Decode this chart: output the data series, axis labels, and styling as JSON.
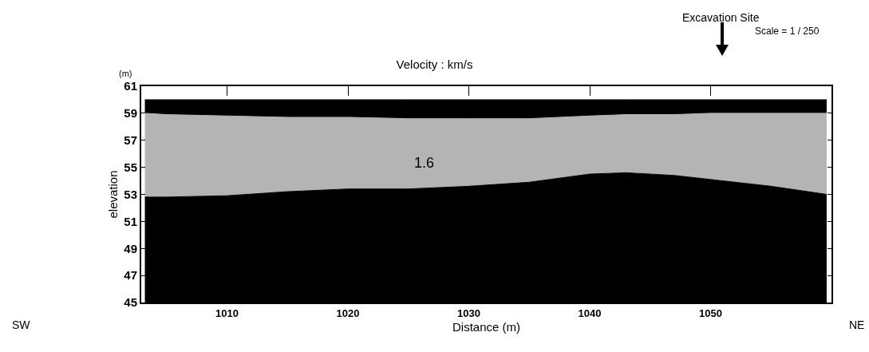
{
  "chart_data": {
    "type": "area",
    "title": "Velocity : km/s",
    "xlabel": "Distance (m)",
    "ylabel": "elevation",
    "x": [
      1003.2,
      1005,
      1010,
      1015,
      1020,
      1025,
      1030,
      1035,
      1040,
      1043,
      1047,
      1050,
      1055,
      1059.6
    ],
    "series": [
      {
        "color": "#000000",
        "values": [
          52.8,
          52.8,
          52.9,
          53.2,
          53.4,
          53.4,
          53.6,
          53.9,
          54.5,
          54.6,
          54.4,
          54.1,
          53.6,
          53.0
        ]
      },
      {
        "color": "#b4b4b4",
        "values": [
          59.0,
          58.9,
          58.8,
          58.7,
          58.7,
          58.6,
          58.6,
          58.6,
          58.8,
          58.9,
          58.9,
          59.0,
          59.0,
          59.0
        ]
      },
      {
        "color": "#000000",
        "values": [
          60.0,
          60.0,
          60.0,
          60.0,
          60.0,
          60.0,
          60.0,
          60.0,
          60.0,
          60.0,
          60.0,
          60.0,
          60.0,
          60.0
        ]
      }
    ],
    "xlim": [
      1002.9,
      1060
    ],
    "xticks": [
      1010,
      1020,
      1030,
      1040,
      1050
    ],
    "ylim": [
      45,
      61
    ],
    "yticks": [
      45,
      47,
      49,
      51,
      53,
      55,
      57,
      59,
      61
    ],
    "annotations": [
      "1.6",
      "Excavation Site",
      "Scale = 1 / 250",
      "(m)",
      "SW",
      "NE"
    ],
    "grid": false
  }
}
